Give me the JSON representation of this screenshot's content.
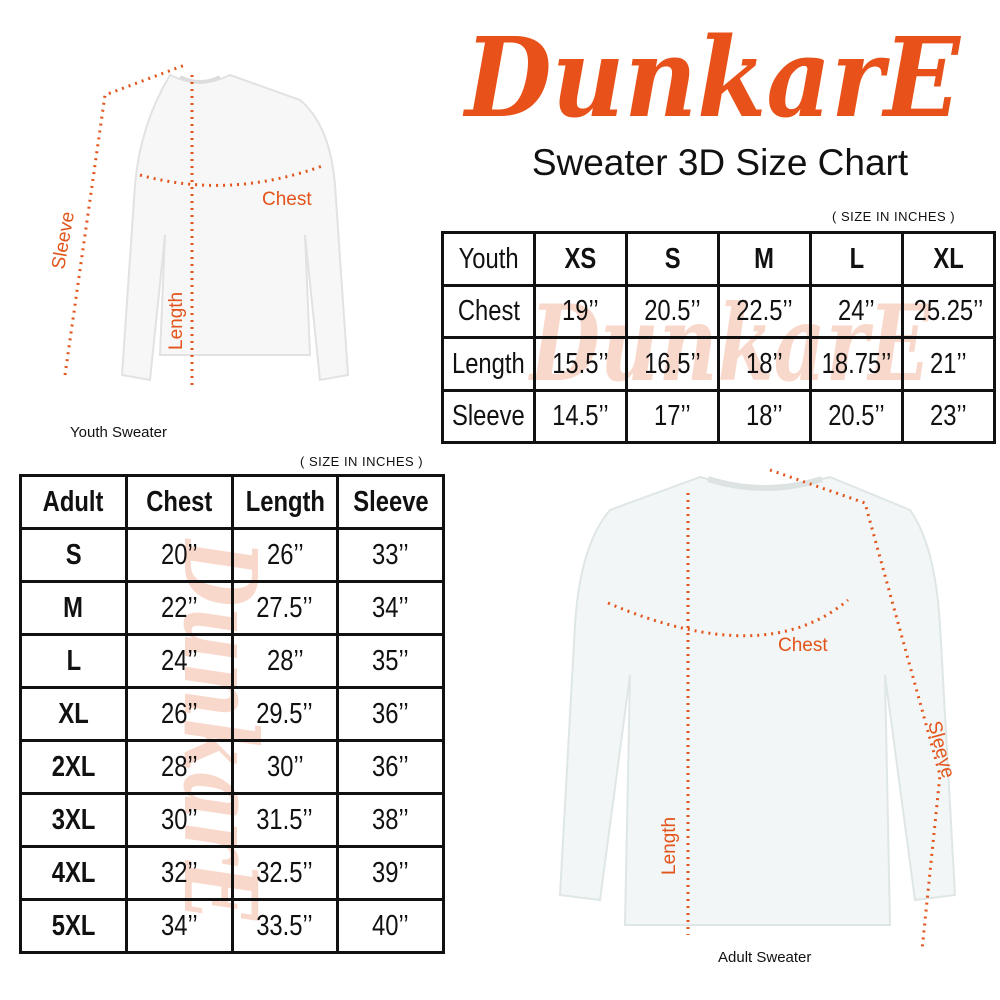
{
  "brand": {
    "logo_text": "DunkarE",
    "color": "#e8521a"
  },
  "title": "Sweater 3D Size Chart",
  "youth": {
    "note": "( SIZE IN INCHES )",
    "caption": "Youth Sweater",
    "diagram_labels": {
      "chest": "Chest",
      "length": "Length",
      "sleeve": "Sleeve"
    },
    "headers": [
      "Youth",
      "XS",
      "S",
      "M",
      "L",
      "XL"
    ],
    "rows": [
      [
        "Chest",
        "19’’",
        "20.5’’",
        "22.5’’",
        "24’’",
        "25.25’’"
      ],
      [
        "Length",
        "15.5’’",
        "16.5’’",
        "18’’",
        "18.75’’",
        "21’’"
      ],
      [
        "Sleeve",
        "14.5’’",
        "17’’",
        "18’’",
        "20.5’’",
        "23’’"
      ]
    ]
  },
  "adult": {
    "note": "( SIZE IN INCHES )",
    "caption": "Adult Sweater",
    "diagram_labels": {
      "chest": "Chest",
      "length": "Length",
      "sleeve": "Sleeve"
    },
    "headers": [
      "Adult",
      "Chest",
      "Length",
      "Sleeve"
    ],
    "rows": [
      [
        "S",
        "20’’",
        "26’’",
        "33’’"
      ],
      [
        "M",
        "22’’",
        "27.5’’",
        "34’’"
      ],
      [
        "L",
        "24’’",
        "28’’",
        "35’’"
      ],
      [
        "XL",
        "26’’",
        "29.5’’",
        "36’’"
      ],
      [
        "2XL",
        "28’’",
        "30’’",
        "36’’"
      ],
      [
        "3XL",
        "30’’",
        "31.5’’",
        "38’’"
      ],
      [
        "4XL",
        "32’’",
        "32.5’’",
        "39’’"
      ],
      [
        "5XL",
        "34’’",
        "33.5’’",
        "40’’"
      ]
    ]
  }
}
